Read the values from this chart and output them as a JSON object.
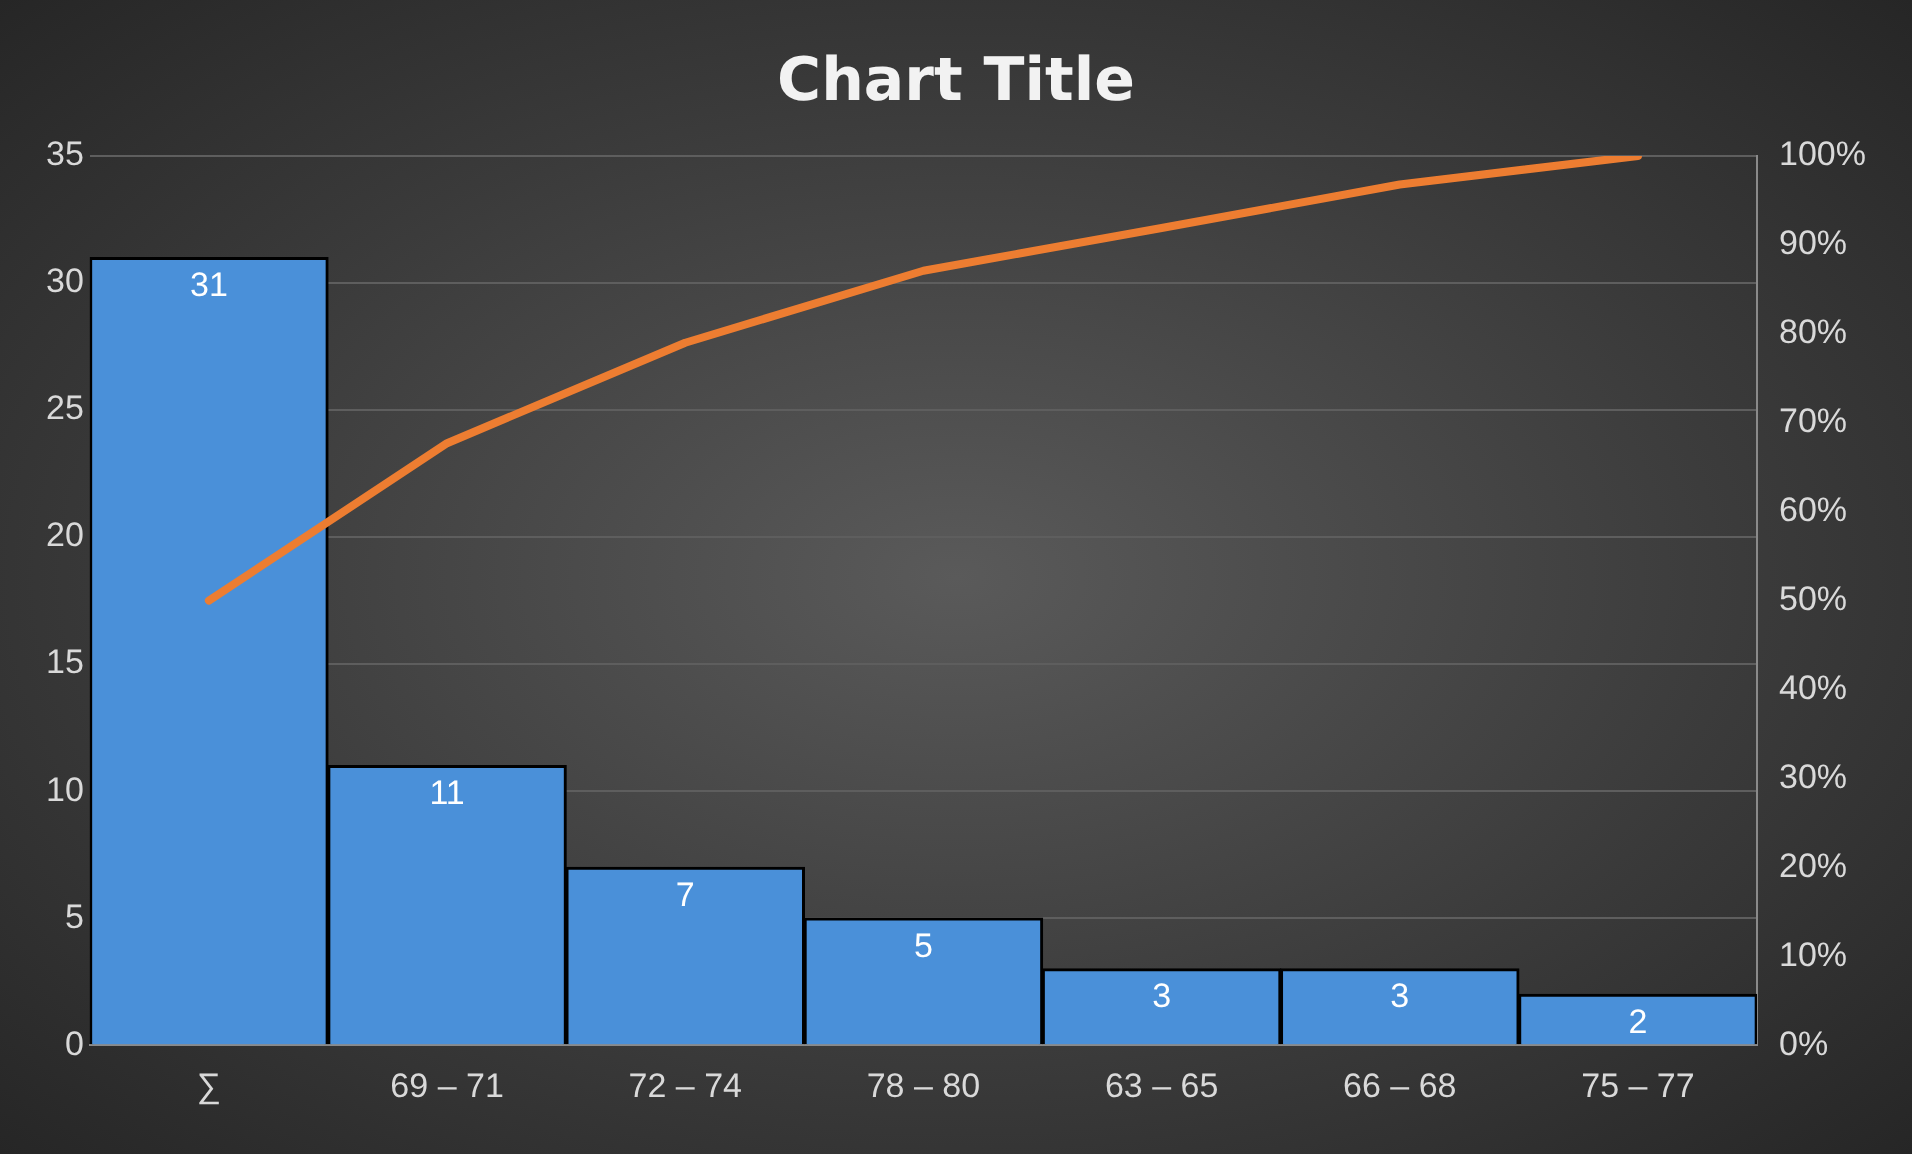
{
  "chart_data": {
    "type": "bar",
    "title": "Chart Title",
    "categories": [
      "∑",
      "69 – 71",
      "72 – 74",
      "78 – 80",
      "63 – 65",
      "66 – 68",
      "75 – 77"
    ],
    "series": [
      {
        "color": "#4a90d9",
        "values": [
          31,
          11,
          7,
          5,
          3,
          3,
          2
        ],
        "value_labels": [
          "31",
          "11",
          "7",
          "5",
          "3",
          "3",
          "2"
        ]
      },
      {
        "type": "line",
        "axis": "y2",
        "color": "#ed7d31",
        "values": [
          50,
          67.7,
          79,
          87.1,
          91.9,
          96.8,
          100
        ]
      }
    ],
    "ylim": [
      0,
      35
    ],
    "yticks": [
      0,
      5,
      10,
      15,
      20,
      25,
      30,
      35
    ],
    "y2lim": [
      0,
      100
    ],
    "y2ticks": [
      {
        "value": 0,
        "label": "0%"
      },
      {
        "value": 10,
        "label": "10%"
      },
      {
        "value": 20,
        "label": "20%"
      },
      {
        "value": 30,
        "label": "30%"
      },
      {
        "value": 40,
        "label": "40%"
      },
      {
        "value": 50,
        "label": "50%"
      },
      {
        "value": 60,
        "label": "60%"
      },
      {
        "value": 70,
        "label": "70%"
      },
      {
        "value": 80,
        "label": "80%"
      },
      {
        "value": 90,
        "label": "90%"
      },
      {
        "value": 100,
        "label": "100%"
      }
    ],
    "grid": "y",
    "legend": false,
    "marker": "none",
    "line_style": "solid"
  }
}
